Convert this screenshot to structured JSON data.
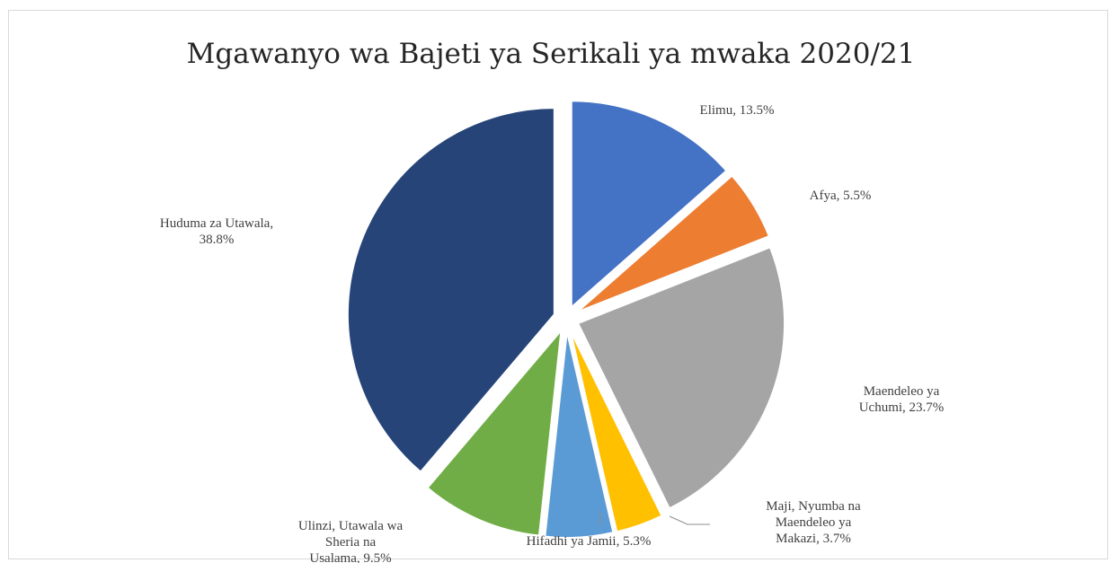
{
  "chart_data": {
    "type": "pie",
    "title": "Mgawanyo wa Bajeti ya Serikali ya mwaka 2020/21",
    "slices": [
      {
        "label": "Elimu, 13.5%",
        "value": 13.5,
        "color": "#4472c4"
      },
      {
        "label": "Afya, 5.5%",
        "value": 5.5,
        "color": "#ed7d31"
      },
      {
        "label": "Maendeleo ya Uchumi, 23.7%",
        "value": 23.7,
        "color": "#a5a5a5"
      },
      {
        "label": "Maji, Nyumba na Maendeleo ya Makazi, 3.7%",
        "value": 3.7,
        "color": "#ffc000"
      },
      {
        "label": "Hifadhi ya Jamii, 5.3%",
        "value": 5.3,
        "color": "#5b9bd5"
      },
      {
        "label": "Ulinzi, Utawala wa Sheria na Usalama, 9.5%",
        "value": 9.5,
        "color": "#70ad47"
      },
      {
        "label": "Huduma za Utawala, 38.8%",
        "value": 38.8,
        "color": "#264478"
      }
    ],
    "legend": "none"
  }
}
